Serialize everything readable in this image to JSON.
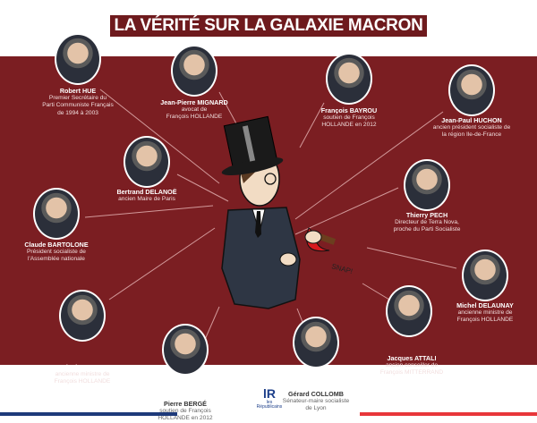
{
  "title": "LA VÉRITÉ SUR LA GALAXIE MACRON",
  "colors": {
    "panel": "#7b1e22",
    "title_bg": "#6e1a1d",
    "flag_blue": "#1e3a7a",
    "flag_red": "#e8363a"
  },
  "people": [
    {
      "name": "Robert HUE",
      "desc": [
        "Premier Secrétaire du",
        "Parti Communiste Français",
        "de 1994 à 2003"
      ]
    },
    {
      "name": "Jean-Pierre MIGNARD",
      "desc": [
        "avocat de",
        "François HOLLANDE"
      ]
    },
    {
      "name": "François BAYROU",
      "desc": [
        "soutien de François",
        "HOLLANDE en 2012"
      ]
    },
    {
      "name": "Jean-Paul HUCHON",
      "desc": [
        "ancien président socialiste de",
        "la région Ile-de-France"
      ]
    },
    {
      "name": "Bertrand DELANOË",
      "desc": [
        "ancien Maire de Paris"
      ]
    },
    {
      "name": "Thierry PECH",
      "desc": [
        "Directeur de Terra Nova,",
        "proche du Parti Socialiste"
      ]
    },
    {
      "name": "Claude BARTOLONE",
      "desc": [
        "Président socialiste de",
        "l'Assemblée nationale"
      ]
    },
    {
      "name": "Michel DELAUNAY",
      "desc": [
        "ancienne ministre de",
        "François HOLLANDE"
      ]
    },
    {
      "name": "Nicole BRICQ",
      "desc": [
        "ancienne ministre de",
        "François HOLLANDE"
      ]
    },
    {
      "name": "Jacques ATTALI",
      "desc": [
        "ancien conseiller de",
        "François MITTERRAND"
      ]
    },
    {
      "name": "Pierre BERGÉ",
      "desc": [
        "soutien de François",
        "HOLLANDE en 2012"
      ]
    },
    {
      "name": "Gérard COLLOMB",
      "desc": [
        "Sénateur-maire socialiste",
        "de Lyon"
      ]
    }
  ],
  "cartoon": {
    "sound": "SNAP!"
  },
  "logo": {
    "mark": "lR",
    "text": "les Républicains"
  }
}
